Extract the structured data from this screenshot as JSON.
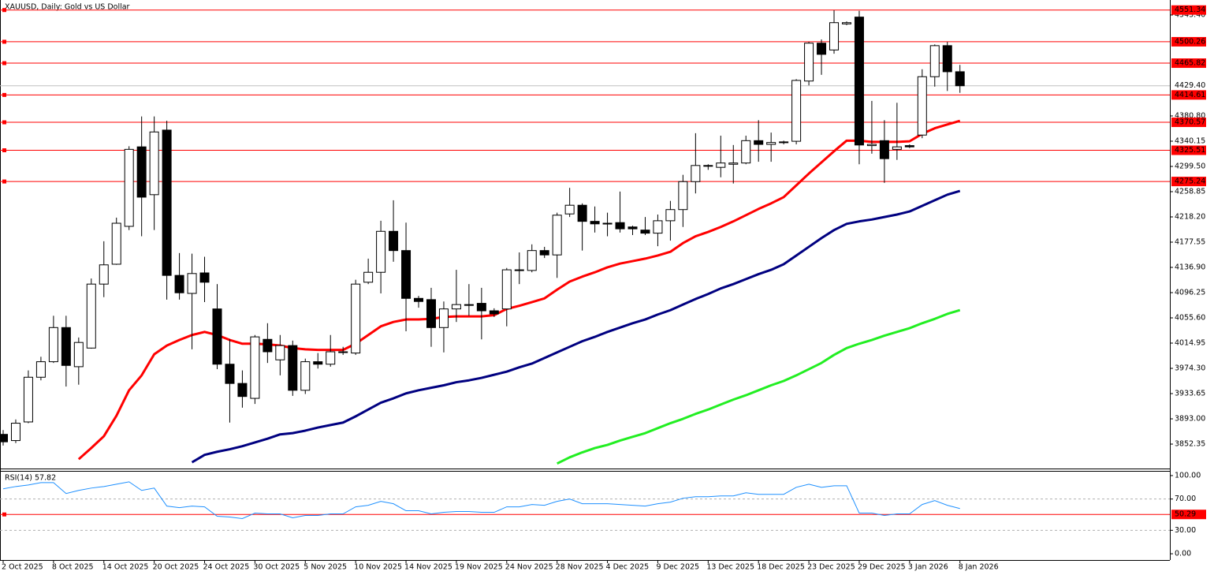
{
  "chart_data": [
    {
      "type": "candlestick",
      "title": "XAUUSD, Daily: Gold vs US Dollar",
      "categories": [
        "2 Oct 2025",
        null,
        null,
        null,
        "8 Oct 2025",
        null,
        null,
        null,
        "14 Oct 2025",
        null,
        null,
        null,
        "20 Oct 2025",
        null,
        null,
        null,
        "24 Oct 2025",
        null,
        null,
        null,
        "30 Oct 2025",
        null,
        null,
        null,
        "5 Nov 2025",
        null,
        null,
        null,
        "10 Nov 2025",
        null,
        null,
        null,
        "14 Nov 2025",
        null,
        null,
        null,
        "19 Nov 2025",
        null,
        null,
        null,
        "24 Nov 2025",
        null,
        null,
        null,
        "28 Nov 2025",
        null,
        null,
        null,
        "4 Dec 2025",
        null,
        null,
        null,
        "9 Dec 2025",
        null,
        null,
        null,
        "13 Dec 2025",
        null,
        null,
        null,
        "18 Dec 2025",
        null,
        null,
        null,
        "23 Dec 2025",
        null,
        null,
        null,
        "29 Dec 2025",
        null,
        null,
        null,
        "3 Jan 2026",
        null,
        null,
        null,
        "8 Jan 2026"
      ],
      "open": [
        3868,
        3858,
        3888,
        3960,
        3985,
        4040,
        3977,
        4007,
        4110,
        4142,
        4203,
        4331,
        4254,
        4358,
        4124,
        4095,
        4128,
        4070,
        3981,
        3950,
        3926,
        4021,
        3988,
        4011,
        3939,
        3985,
        3981,
        4000,
        3999,
        4113,
        4129,
        4195,
        4164,
        4087,
        4085,
        4040,
        4070,
        4077,
        4079,
        4067,
        4070,
        4132,
        4132,
        4164,
        4157,
        4223,
        4237,
        4211,
        4207,
        4209,
        4202,
        4197,
        4192,
        4212,
        4230,
        4275,
        4300,
        4298,
        4303,
        4305,
        4341,
        4335,
        4338,
        4340,
        4437,
        4498,
        4487,
        4529,
        4540,
        4333,
        4341,
        4327,
        4333,
        4350,
        4444,
        4494,
        4452
      ],
      "high": [
        3875,
        3892,
        3971,
        3993,
        4059,
        4059,
        4024,
        4119,
        4179,
        4217,
        4332,
        4380,
        4380,
        4373,
        4160,
        4159,
        4154,
        4110,
        4021,
        3971,
        4028,
        4047,
        4028,
        4019,
        3990,
        3999,
        4028,
        4009,
        4117,
        4151,
        4212,
        4245,
        4209,
        4091,
        4104,
        4082,
        4133,
        4110,
        4104,
        4071,
        4136,
        4161,
        4174,
        4170,
        4225,
        4265,
        4240,
        4235,
        4225,
        4259,
        4204,
        4218,
        4222,
        4244,
        4286,
        4353,
        4303,
        4349,
        4334,
        4349,
        4374,
        4354,
        4341,
        4440,
        4500,
        4504,
        4551,
        4533,
        4550,
        4405,
        4374,
        4402,
        4335,
        4456,
        4496,
        4500,
        4463
      ],
      "low": [
        3850,
        3854,
        3886,
        3955,
        3983,
        3945,
        3948,
        4006,
        4089,
        4141,
        4197,
        4187,
        4197,
        4085,
        4085,
        4005,
        4081,
        3973,
        3887,
        3911,
        3917,
        3983,
        3963,
        3930,
        3933,
        3974,
        3977,
        3996,
        3996,
        4110,
        4095,
        4146,
        4034,
        4072,
        4009,
        4000,
        4049,
        4059,
        4021,
        4057,
        4042,
        4110,
        4129,
        4152,
        4120,
        4218,
        4164,
        4193,
        4187,
        4193,
        4189,
        4189,
        4171,
        4180,
        4202,
        4256,
        4294,
        4282,
        4272,
        4303,
        4307,
        4307,
        4335,
        4335,
        4430,
        4447,
        4481,
        4527,
        4303,
        4320,
        4273,
        4310,
        4329,
        4345,
        4428,
        4421,
        4418
      ],
      "close": [
        3856,
        3886,
        3960,
        3985,
        4040,
        3979,
        4016,
        4110,
        4141,
        4208,
        4327,
        4250,
        4355,
        4124,
        4096,
        4127,
        4113,
        3981,
        3950,
        3929,
        4025,
        4001,
        4011,
        3939,
        3985,
        3981,
        4001,
        4001,
        4110,
        4129,
        4195,
        4164,
        4087,
        4082,
        4040,
        4070,
        4077,
        4076,
        4067,
        4062,
        4133,
        4133,
        4164,
        4157,
        4221,
        4237,
        4211,
        4207,
        4208,
        4199,
        4199,
        4192,
        4212,
        4230,
        4275,
        4301,
        4301,
        4305,
        4305,
        4341,
        4335,
        4338,
        4339,
        4438,
        4498,
        4480,
        4531,
        4531,
        4334,
        4335,
        4312,
        4331,
        4331,
        4444,
        4494,
        4452,
        4429.4
      ],
      "up_color": "#ffffff",
      "down_color": "#000000",
      "moving_averages": [
        {
          "color": "#ff0000",
          "values": [
            null,
            null,
            null,
            null,
            null,
            null,
            3828,
            3846,
            3865,
            3898,
            3939,
            3963,
            3997,
            4011,
            4020,
            4028,
            4033,
            4028,
            4020,
            4014,
            4014,
            4013,
            4011,
            4007,
            4005,
            4004,
            4004,
            4004,
            4014,
            4028,
            4042,
            4049,
            4053,
            4053,
            4054,
            4057,
            4058,
            4058,
            4058,
            4060,
            4070,
            4075,
            4081,
            4087,
            4101,
            4114,
            4122,
            4129,
            4137,
            4143,
            4147,
            4151,
            4156,
            4162,
            4176,
            4187,
            4194,
            4202,
            4211,
            4221,
            4231,
            4240,
            4250,
            4269,
            4288,
            4306,
            4324,
            4341,
            4341,
            4339,
            4339,
            4339,
            4340,
            4352,
            4361,
            4367,
            4373
          ]
        },
        {
          "color": "#000080",
          "values": [
            null,
            null,
            null,
            null,
            null,
            null,
            null,
            null,
            null,
            null,
            null,
            null,
            null,
            null,
            null,
            3823,
            3835,
            3840,
            3844,
            3849,
            3855,
            3861,
            3868,
            3870,
            3874,
            3879,
            3883,
            3887,
            3897,
            3908,
            3919,
            3926,
            3934,
            3939,
            3943,
            3947,
            3952,
            3955,
            3959,
            3964,
            3969,
            3976,
            3982,
            3991,
            4000,
            4009,
            4018,
            4025,
            4033,
            4040,
            4047,
            4053,
            4061,
            4068,
            4077,
            4086,
            4094,
            4103,
            4110,
            4118,
            4126,
            4133,
            4142,
            4156,
            4170,
            4184,
            4197,
            4207,
            4211,
            4214,
            4218,
            4222,
            4227,
            4236,
            4245,
            4254,
            4260
          ]
        },
        {
          "color": "#22ee22",
          "values": [
            null,
            null,
            null,
            null,
            null,
            null,
            null,
            null,
            null,
            null,
            null,
            null,
            null,
            null,
            null,
            null,
            null,
            null,
            null,
            null,
            null,
            null,
            null,
            null,
            null,
            null,
            null,
            null,
            null,
            null,
            null,
            null,
            null,
            null,
            null,
            null,
            null,
            null,
            null,
            null,
            null,
            null,
            null,
            null,
            3821,
            3831,
            3839,
            3846,
            3851,
            3858,
            3864,
            3870,
            3878,
            3886,
            3893,
            3901,
            3908,
            3916,
            3924,
            3931,
            3939,
            3947,
            3954,
            3963,
            3973,
            3983,
            3996,
            4007,
            4014,
            4020,
            4027,
            4033,
            4039,
            4047,
            4054,
            4062,
            4068
          ]
        }
      ],
      "levels": [
        4551.34,
        4500.26,
        4465.82,
        4414.61,
        4370.57,
        4325.51,
        4275.24
      ],
      "level_color": "#ff0000",
      "current_price": {
        "value": 4429.4,
        "label": "4429.40"
      },
      "ylim": [
        3813,
        4567.5
      ],
      "yticks": [
        {
          "value": 4543.4,
          "label": "4543.40"
        },
        {
          "value": 4380.8,
          "label": "4380.80"
        },
        4340.15,
        {
          "value": 4299.5,
          "label": "4299.50"
        },
        4258.85,
        {
          "value": 4218.2,
          "label": "4218.20"
        },
        4177.55,
        {
          "value": 4136.9,
          "label": "4136.90"
        },
        4096.25,
        {
          "value": 4055.6,
          "label": "4055.60"
        },
        4014.95,
        {
          "value": 3974.3,
          "label": "3974.30"
        },
        3933.65,
        {
          "value": 3893,
          "label": "3893.00"
        },
        3852.35
      ]
    },
    {
      "type": "line",
      "title": "RSI(14) 57.82",
      "color": "#1e90ff",
      "values": [
        83,
        86,
        88,
        91,
        91,
        77,
        81,
        84,
        86,
        89,
        92,
        81,
        84,
        61,
        59,
        61,
        60,
        48,
        47,
        45,
        52,
        51,
        51,
        46,
        49,
        49,
        51,
        51,
        60,
        62,
        67,
        64,
        55,
        55,
        51,
        53,
        54,
        54,
        53,
        53,
        60,
        60,
        63,
        62,
        67,
        70,
        64,
        64,
        64,
        63,
        62,
        61,
        64,
        66,
        71,
        73,
        73,
        74,
        74,
        78,
        76,
        76,
        76,
        85,
        89,
        85,
        87,
        87,
        52,
        52,
        49,
        51,
        51,
        63,
        68,
        62,
        57.82
      ],
      "levels": [
        50.29
      ],
      "level_color": "#ff0000",
      "ylim": [
        -8,
        106
      ],
      "yticks": [
        {
          "value": 100,
          "label": "100.00"
        },
        {
          "value": 70,
          "label": "70.00"
        },
        {
          "value": 30,
          "label": "30.00"
        },
        {
          "value": 0,
          "label": "0.00"
        }
      ],
      "grid": "inner"
    }
  ]
}
